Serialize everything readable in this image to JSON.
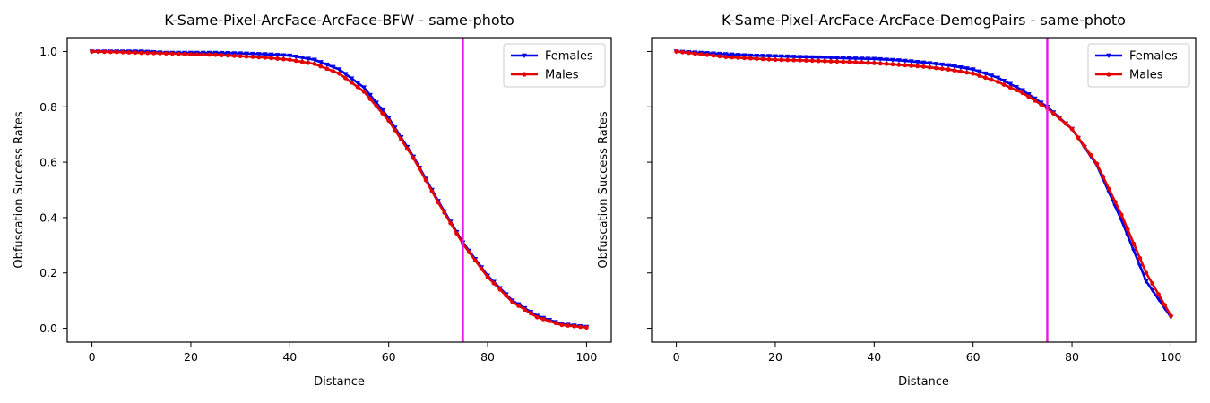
{
  "chart_data": [
    {
      "type": "line",
      "title": "K-Same-Pixel-ArcFace-ArcFace-BFW - same-photo",
      "xlabel": "Distance",
      "ylabel": "Obfuscation Success Rates",
      "xlim": [
        -5,
        105
      ],
      "ylim": [
        -0.05,
        1.05
      ],
      "xticks": [
        0,
        20,
        40,
        60,
        80,
        100
      ],
      "yticks": [
        0.0,
        0.2,
        0.4,
        0.6,
        0.8,
        1.0
      ],
      "ytick_labels": [
        "0.0",
        "0.2",
        "0.4",
        "0.6",
        "0.8",
        "1.0"
      ],
      "show_yticklabels": true,
      "grid": false,
      "legend_position": "top-right",
      "vline": {
        "x": 75,
        "color": "#e619e6"
      },
      "x": [
        0,
        5,
        10,
        15,
        20,
        25,
        30,
        35,
        40,
        45,
        50,
        55,
        60,
        65,
        70,
        75,
        80,
        85,
        90,
        95,
        100
      ],
      "series": [
        {
          "name": "Females",
          "color": "#0000e6",
          "marker": "triangle-down",
          "values": [
            1.0,
            1.0,
            1.0,
            0.995,
            0.995,
            0.995,
            0.993,
            0.99,
            0.985,
            0.97,
            0.935,
            0.87,
            0.76,
            0.62,
            0.46,
            0.31,
            0.19,
            0.1,
            0.045,
            0.015,
            0.005
          ]
        },
        {
          "name": "Males",
          "color": "#e60000",
          "marker": "circle",
          "values": [
            1.0,
            0.998,
            0.995,
            0.993,
            0.99,
            0.988,
            0.983,
            0.978,
            0.97,
            0.955,
            0.92,
            0.855,
            0.75,
            0.615,
            0.455,
            0.305,
            0.185,
            0.095,
            0.04,
            0.012,
            0.003
          ]
        }
      ]
    },
    {
      "type": "line",
      "title": "K-Same-Pixel-ArcFace-ArcFace-DemogPairs - same-photo",
      "xlabel": "Distance",
      "ylabel": "Obfuscation Success Rates",
      "xlim": [
        -5,
        105
      ],
      "ylim": [
        -0.05,
        1.05
      ],
      "xticks": [
        0,
        20,
        40,
        60,
        80,
        100
      ],
      "yticks": [
        0.0,
        0.2,
        0.4,
        0.6,
        0.8,
        1.0
      ],
      "ytick_labels": [],
      "show_yticklabels": false,
      "grid": false,
      "legend_position": "top-right",
      "vline": {
        "x": 75,
        "color": "#e619e6"
      },
      "x": [
        0,
        5,
        10,
        15,
        20,
        25,
        30,
        35,
        40,
        45,
        50,
        55,
        60,
        65,
        70,
        75,
        80,
        85,
        90,
        95,
        100
      ],
      "series": [
        {
          "name": "Females",
          "color": "#0000e6",
          "marker": "triangle-down",
          "values": [
            1.0,
            0.995,
            0.99,
            0.985,
            0.983,
            0.98,
            0.978,
            0.975,
            0.973,
            0.968,
            0.96,
            0.95,
            0.935,
            0.905,
            0.86,
            0.8,
            0.72,
            0.59,
            0.39,
            0.17,
            0.04
          ]
        },
        {
          "name": "Males",
          "color": "#e60000",
          "marker": "circle",
          "values": [
            1.0,
            0.99,
            0.98,
            0.975,
            0.97,
            0.968,
            0.965,
            0.962,
            0.958,
            0.952,
            0.945,
            0.935,
            0.92,
            0.89,
            0.85,
            0.795,
            0.72,
            0.595,
            0.41,
            0.2,
            0.045
          ]
        }
      ]
    }
  ]
}
